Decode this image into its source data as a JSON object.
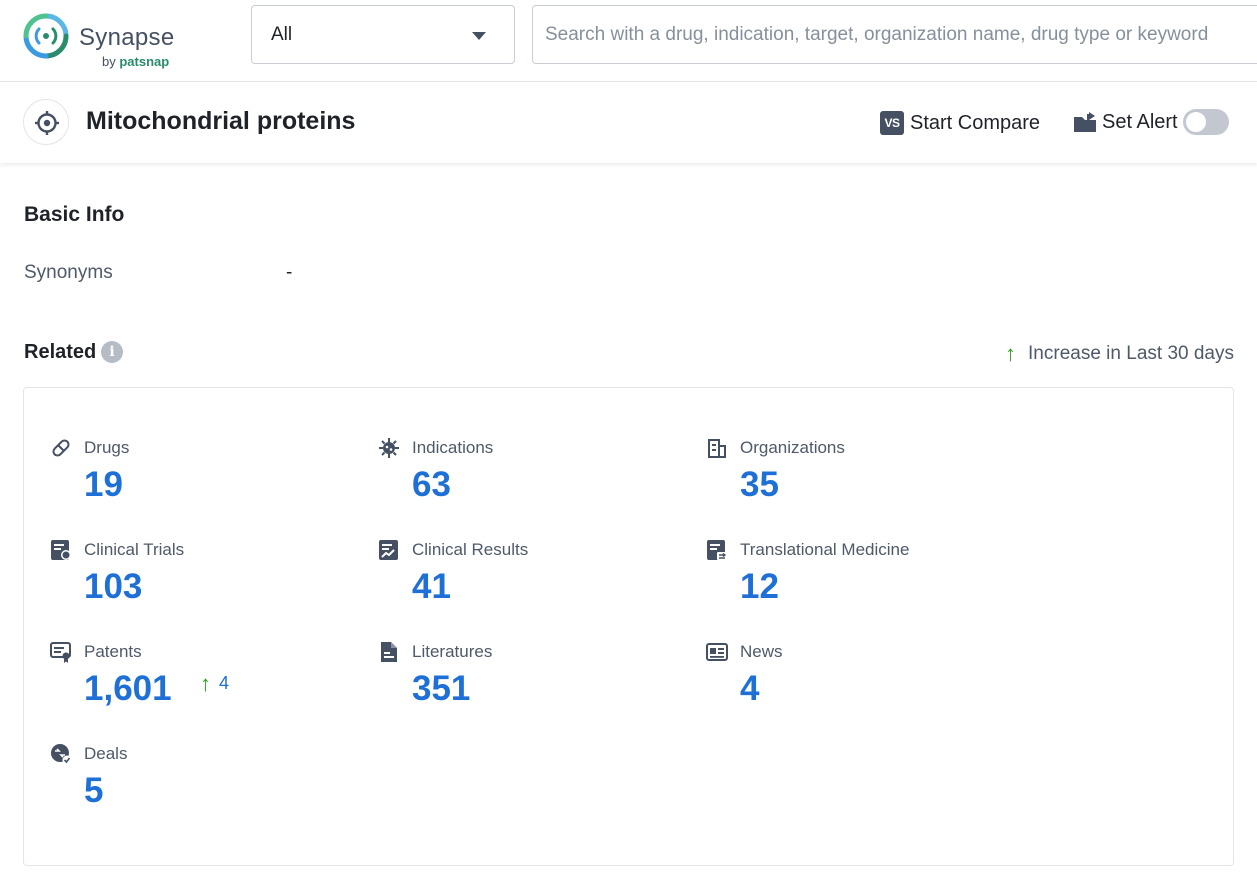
{
  "header": {
    "logo_word": "Synapse",
    "logo_by": "by",
    "logo_brand": "patsnap",
    "scope_select": "All",
    "search_placeholder": "Search with a drug, indication, target, organization name, drug type or keyword"
  },
  "title_bar": {
    "title": "Mitochondrial proteins",
    "compare_icon_text": "VS",
    "compare_label": "Start Compare",
    "alert_label": "Set Alert",
    "alert_enabled": false
  },
  "basic_info": {
    "heading": "Basic Info",
    "synonyms_label": "Synonyms",
    "synonyms_value": "-"
  },
  "related": {
    "heading": "Related",
    "info_glyph": "i",
    "legend_arrow": "↑",
    "legend_text": "Increase in Last 30 days",
    "items": [
      {
        "label": "Drugs",
        "value": "19",
        "icon": "pill-icon"
      },
      {
        "label": "Indications",
        "value": "63",
        "icon": "virus-icon"
      },
      {
        "label": "Organizations",
        "value": "35",
        "icon": "building-icon"
      },
      {
        "label": "Clinical Trials",
        "value": "103",
        "icon": "clinical-trial-icon"
      },
      {
        "label": "Clinical Results",
        "value": "41",
        "icon": "chart-doc-icon"
      },
      {
        "label": "Translational Medicine",
        "value": "12",
        "icon": "translational-doc-icon"
      },
      {
        "label": "Patents",
        "value": "1,601",
        "icon": "patent-icon",
        "increase": "4",
        "increase_arrow": "↑"
      },
      {
        "label": "Literatures",
        "value": "351",
        "icon": "literature-icon"
      },
      {
        "label": "News",
        "value": "4",
        "icon": "news-icon"
      },
      {
        "label": "Deals",
        "value": "5",
        "icon": "deal-icon"
      }
    ]
  },
  "colors": {
    "accent_number": "#1e6fd6",
    "increase_green": "#2ea121",
    "icon_slate": "#455063"
  }
}
